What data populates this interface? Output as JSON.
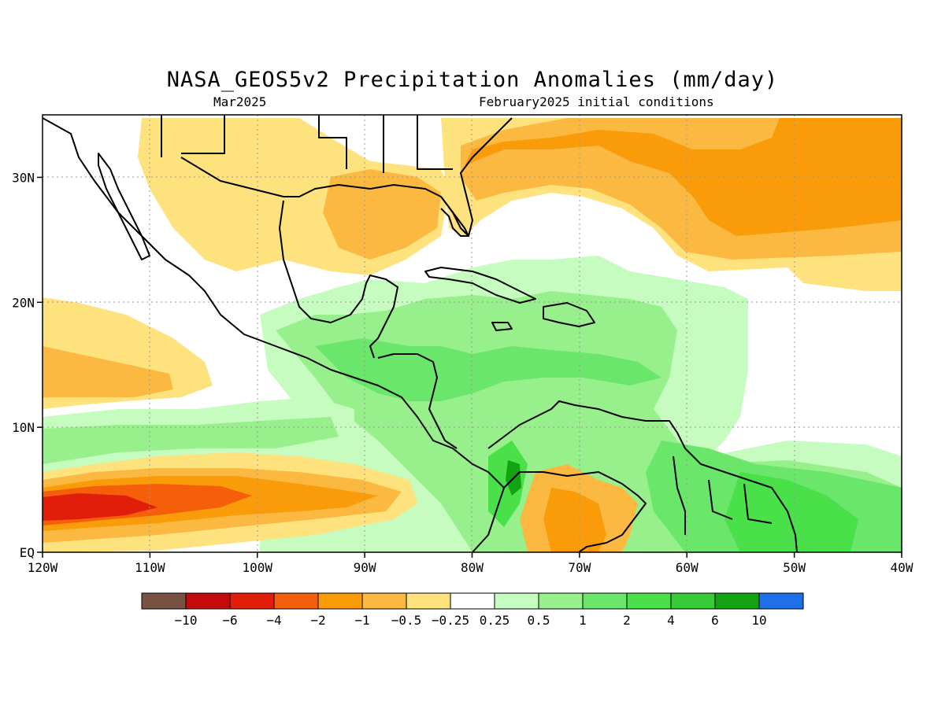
{
  "title": "NASA_GEOS5v2 Precipitation Anomalies (mm/day)",
  "subtitle_left": "Mar2025",
  "subtitle_right": "February2025 initial conditions",
  "map": {
    "lon_range": [
      -120,
      -40
    ],
    "lat_range": [
      0,
      35
    ],
    "lon_labels": [
      "120W",
      "110W",
      "100W",
      "90W",
      "80W",
      "70W",
      "60W",
      "50W",
      "40W"
    ],
    "lat_labels": [
      "EQ",
      "10N",
      "20N",
      "30N"
    ]
  },
  "colorbar": {
    "colors": [
      "#7a5145",
      "#c40a0a",
      "#e01e0a",
      "#f55f0a",
      "#fa9b0a",
      "#fbb941",
      "#fde27e",
      "#ffffff",
      "#c6fcc0",
      "#98f08c",
      "#6ae66a",
      "#4ae04a",
      "#37cb37",
      "#11a311",
      "#1f6fe8"
    ],
    "labels": [
      "−10",
      "−6",
      "−4",
      "−2",
      "−1",
      "−0.5",
      "−0.25",
      "0.25",
      "0.5",
      "1",
      "2",
      "4",
      "6",
      "10"
    ]
  }
}
